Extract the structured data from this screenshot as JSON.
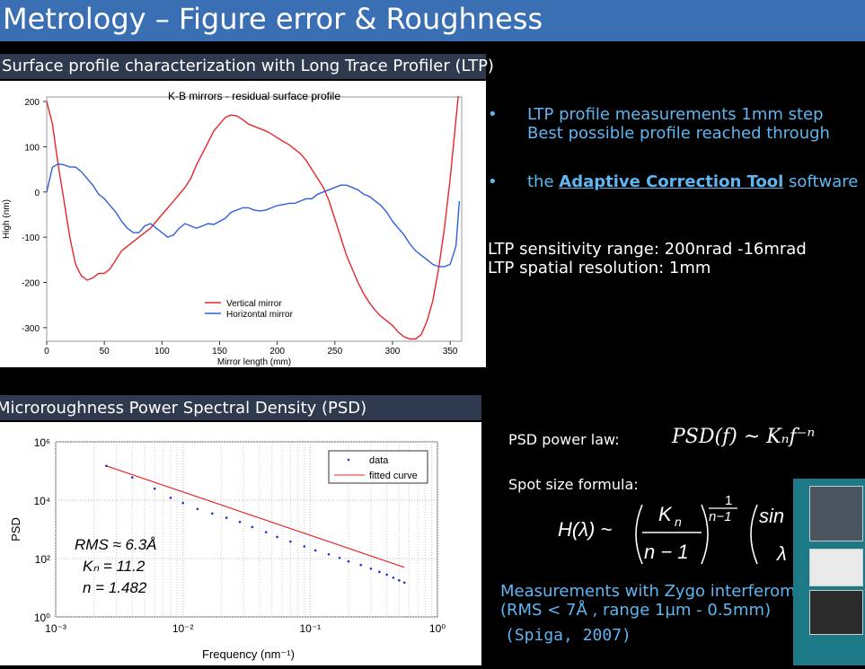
{
  "slide": {
    "title": "Metrology – Figure error & Roughness",
    "ltp_header": "Surface profile characterization with Long Trace Profiler (LTP)",
    "psd_header": "Microroughness Power Spectral Density (PSD)"
  },
  "bullets": {
    "b1_line1": "LTP profile measurements 1mm step",
    "b1_line2": "Best possible profile reached through",
    "b2_prefix": "the ",
    "b2_link": "Adaptive Correction Tool",
    "b2_suffix": " software"
  },
  "ltp_specs": {
    "line1": "LTP  sensitivity range:  200nrad -16mrad",
    "line2": "LTP spatial resolution:  1mm"
  },
  "formulas": {
    "psd_label": "PSD power law:",
    "spot_label": "Spot size formula:",
    "psd_formula": "PSD(f) ~ Kₙf⁻ⁿ"
  },
  "zygo": {
    "line1": "Measurements with Zygo interferom",
    "line2": "(RMS < 7Å , range 1µm - 0.5mm)",
    "citation": "(Spiga, 2007)"
  },
  "chart_data": [
    {
      "type": "line",
      "title": "K-B mirrors - residual surface profile",
      "xlabel": "Mirror length (mm)",
      "ylabel": "High (nm)",
      "xlim": [
        0,
        360
      ],
      "ylim": [
        -330,
        210
      ],
      "xticks": [
        0,
        50,
        100,
        150,
        200,
        250,
        300,
        350
      ],
      "yticks": [
        200,
        100,
        0,
        -100,
        -200,
        -300
      ],
      "legend_position": "bottom-center",
      "series": [
        {
          "name": "Vertical mirror",
          "color": "#e8262a",
          "points": [
            [
              0,
              200
            ],
            [
              5,
              150
            ],
            [
              10,
              60
            ],
            [
              15,
              -20
            ],
            [
              20,
              -100
            ],
            [
              25,
              -160
            ],
            [
              30,
              -185
            ],
            [
              35,
              -195
            ],
            [
              40,
              -190
            ],
            [
              45,
              -180
            ],
            [
              50,
              -180
            ],
            [
              55,
              -170
            ],
            [
              60,
              -150
            ],
            [
              65,
              -130
            ],
            [
              70,
              -120
            ],
            [
              75,
              -110
            ],
            [
              80,
              -100
            ],
            [
              85,
              -90
            ],
            [
              90,
              -80
            ],
            [
              95,
              -65
            ],
            [
              100,
              -50
            ],
            [
              105,
              -35
            ],
            [
              110,
              -20
            ],
            [
              115,
              -5
            ],
            [
              120,
              10
            ],
            [
              125,
              30
            ],
            [
              130,
              60
            ],
            [
              135,
              85
            ],
            [
              140,
              110
            ],
            [
              145,
              135
            ],
            [
              150,
              150
            ],
            [
              155,
              165
            ],
            [
              160,
              170
            ],
            [
              165,
              168
            ],
            [
              170,
              160
            ],
            [
              175,
              150
            ],
            [
              180,
              145
            ],
            [
              185,
              140
            ],
            [
              190,
              135
            ],
            [
              195,
              128
            ],
            [
              200,
              120
            ],
            [
              205,
              112
            ],
            [
              210,
              105
            ],
            [
              215,
              95
            ],
            [
              220,
              85
            ],
            [
              225,
              70
            ],
            [
              230,
              50
            ],
            [
              235,
              30
            ],
            [
              240,
              10
            ],
            [
              245,
              -20
            ],
            [
              250,
              -60
            ],
            [
              255,
              -100
            ],
            [
              260,
              -140
            ],
            [
              265,
              -170
            ],
            [
              270,
              -200
            ],
            [
              275,
              -225
            ],
            [
              280,
              -245
            ],
            [
              285,
              -262
            ],
            [
              290,
              -275
            ],
            [
              295,
              -285
            ],
            [
              300,
              -295
            ],
            [
              305,
              -310
            ],
            [
              310,
              -320
            ],
            [
              315,
              -325
            ],
            [
              320,
              -325
            ],
            [
              325,
              -315
            ],
            [
              330,
              -285
            ],
            [
              335,
              -240
            ],
            [
              340,
              -170
            ],
            [
              345,
              -80
            ],
            [
              350,
              30
            ],
            [
              355,
              160
            ],
            [
              360,
              290
            ]
          ]
        },
        {
          "name": "Horizontal mirror",
          "color": "#2f5fd8",
          "points": [
            [
              0,
              0
            ],
            [
              5,
              55
            ],
            [
              10,
              62
            ],
            [
              15,
              60
            ],
            [
              20,
              55
            ],
            [
              25,
              55
            ],
            [
              30,
              45
            ],
            [
              35,
              30
            ],
            [
              40,
              15
            ],
            [
              45,
              -5
            ],
            [
              50,
              -15
            ],
            [
              55,
              -30
            ],
            [
              60,
              -45
            ],
            [
              65,
              -65
            ],
            [
              70,
              -80
            ],
            [
              75,
              -90
            ],
            [
              80,
              -90
            ],
            [
              85,
              -75
            ],
            [
              90,
              -70
            ],
            [
              95,
              -80
            ],
            [
              100,
              -90
            ],
            [
              105,
              -100
            ],
            [
              110,
              -95
            ],
            [
              115,
              -80
            ],
            [
              120,
              -70
            ],
            [
              125,
              -75
            ],
            [
              130,
              -80
            ],
            [
              135,
              -75
            ],
            [
              140,
              -70
            ],
            [
              145,
              -72
            ],
            [
              150,
              -65
            ],
            [
              155,
              -58
            ],
            [
              160,
              -45
            ],
            [
              165,
              -40
            ],
            [
              170,
              -35
            ],
            [
              175,
              -35
            ],
            [
              180,
              -40
            ],
            [
              185,
              -42
            ],
            [
              190,
              -40
            ],
            [
              195,
              -35
            ],
            [
              200,
              -30
            ],
            [
              205,
              -28
            ],
            [
              210,
              -25
            ],
            [
              215,
              -25
            ],
            [
              220,
              -20
            ],
            [
              225,
              -15
            ],
            [
              230,
              -15
            ],
            [
              235,
              -5
            ],
            [
              240,
              0
            ],
            [
              245,
              5
            ],
            [
              250,
              10
            ],
            [
              255,
              15
            ],
            [
              260,
              15
            ],
            [
              265,
              10
            ],
            [
              270,
              5
            ],
            [
              275,
              -5
            ],
            [
              280,
              -10
            ],
            [
              285,
              -20
            ],
            [
              290,
              -30
            ],
            [
              295,
              -45
            ],
            [
              300,
              -65
            ],
            [
              305,
              -80
            ],
            [
              310,
              -95
            ],
            [
              315,
              -115
            ],
            [
              320,
              -130
            ],
            [
              325,
              -140
            ],
            [
              330,
              -150
            ],
            [
              335,
              -160
            ],
            [
              340,
              -165
            ],
            [
              345,
              -165
            ],
            [
              350,
              -160
            ],
            [
              355,
              -120
            ],
            [
              358,
              -20
            ]
          ]
        }
      ]
    },
    {
      "type": "scatter",
      "xlabel": "Frequency (nm⁻¹)",
      "ylabel": "PSD",
      "xscale": "log",
      "yscale": "log",
      "xlim": [
        0.001,
        1
      ],
      "ylim": [
        1,
        1000000
      ],
      "xtick_labels": [
        "10⁻³",
        "10⁻²",
        "10⁻¹",
        "10⁰"
      ],
      "ytick_labels": [
        "10⁰",
        "10²",
        "10⁴",
        "10⁶"
      ],
      "legend_position": "top-right",
      "annotations": [
        "RMS ≈ 6.3Å",
        "Kₙ = 11.2",
        "n = 1.482"
      ],
      "series": [
        {
          "name": "data",
          "color": "#1f2fd6",
          "points": [
            [
              0.0025,
              150000
            ],
            [
              0.004,
              60000
            ],
            [
              0.006,
              25000
            ],
            [
              0.008,
              12000
            ],
            [
              0.01,
              8000
            ],
            [
              0.013,
              5000
            ],
            [
              0.017,
              3500
            ],
            [
              0.022,
              2500
            ],
            [
              0.028,
              1800
            ],
            [
              0.035,
              1200
            ],
            [
              0.045,
              800
            ],
            [
              0.055,
              550
            ],
            [
              0.07,
              380
            ],
            [
              0.09,
              260
            ],
            [
              0.11,
              190
            ],
            [
              0.14,
              140
            ],
            [
              0.17,
              105
            ],
            [
              0.2,
              80
            ],
            [
              0.25,
              60
            ],
            [
              0.3,
              45
            ],
            [
              0.35,
              35
            ],
            [
              0.4,
              28
            ],
            [
              0.45,
              22
            ],
            [
              0.5,
              18
            ],
            [
              0.55,
              15
            ]
          ]
        },
        {
          "name": "fitted curve",
          "color": "#e8262a",
          "line": [
            [
              0.0025,
              150000
            ],
            [
              0.55,
              50
            ]
          ]
        }
      ]
    }
  ]
}
